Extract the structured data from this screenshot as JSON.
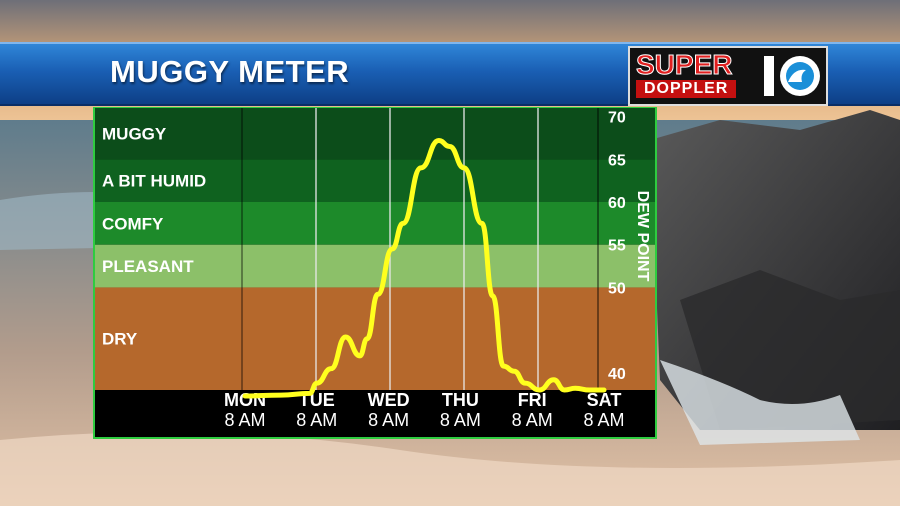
{
  "header": {
    "title": "MUGGY METER"
  },
  "logo": {
    "line1": "SUPER",
    "line2": "DOPPLER",
    "number": "10"
  },
  "chart_data": {
    "type": "line",
    "ylabel": "DEW POINT",
    "yticks": [
      40,
      50,
      55,
      60,
      65,
      70
    ],
    "ylim": [
      38,
      71
    ],
    "categories": [
      {
        "day": "MON",
        "time": "8 AM"
      },
      {
        "day": "TUE",
        "time": "8 AM"
      },
      {
        "day": "WED",
        "time": "8 AM"
      },
      {
        "day": "THU",
        "time": "8 AM"
      },
      {
        "day": "FRI",
        "time": "8 AM"
      },
      {
        "day": "SAT",
        "time": "8 AM"
      }
    ],
    "bands": [
      {
        "label": "MUGGY",
        "from": 65,
        "to": 71,
        "color": "#0c4d1a"
      },
      {
        "label": "A BIT HUMID",
        "from": 60,
        "to": 65,
        "color": "#0f621f"
      },
      {
        "label": "COMFY",
        "from": 55,
        "to": 60,
        "color": "#1d8a2a"
      },
      {
        "label": "PLEASANT",
        "from": 50,
        "to": 55,
        "color": "#8cc069"
      },
      {
        "label": "DRY",
        "from": 38,
        "to": 50,
        "color": "#b5682c"
      }
    ],
    "line_color": "#ffff1e",
    "series": [
      {
        "x": [
          0,
          0.5,
          0.9,
          1.0,
          1.2,
          1.4,
          1.6,
          1.7,
          1.85,
          2.05,
          2.2,
          2.45,
          2.7,
          2.85,
          3.05,
          3.3,
          3.45,
          3.6,
          3.75,
          3.9,
          4.1,
          4.3,
          4.45,
          4.6,
          4.8,
          5.0
        ],
        "values": [
          37.3,
          37.4,
          37.6,
          38.8,
          40.5,
          44.2,
          42.0,
          44.0,
          49.2,
          54.5,
          57.5,
          64.0,
          67.2,
          66.5,
          64.0,
          57.5,
          49.0,
          40.8,
          40.2,
          38.8,
          38.0,
          39.2,
          38.0,
          38.2,
          38.0,
          38.0
        ]
      }
    ]
  }
}
